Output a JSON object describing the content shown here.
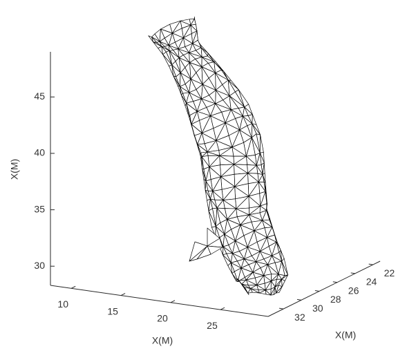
{
  "chart_data": {
    "type": "mesh",
    "xlabel": "X(M)",
    "ylabel": "X(M)",
    "zlabel": "X(M)",
    "xlim": [
      7.9,
      29.8
    ],
    "ylim": [
      21.2,
      33.7
    ],
    "zlim": [
      28.3,
      49
    ],
    "xticks": [
      10,
      15,
      20,
      25
    ],
    "yticks": [
      22,
      24,
      26,
      28,
      30,
      32
    ],
    "zticks": [
      30,
      35,
      40,
      45
    ],
    "color": "#000000"
  }
}
